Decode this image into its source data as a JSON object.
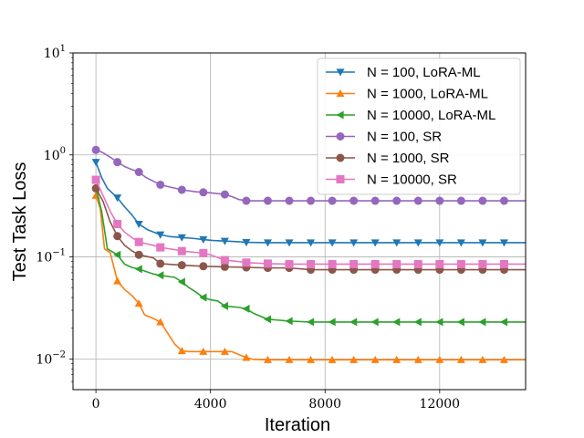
{
  "chart_data": {
    "type": "line",
    "title": "",
    "xlabel": "Iteration",
    "ylabel": "Test Task Loss",
    "yscale": "log",
    "xlim": [
      -800,
      15000
    ],
    "ylim": [
      0.005,
      10
    ],
    "xticks": [
      0,
      4000,
      8000,
      12000
    ],
    "xtick_labels": [
      "0",
      "4000",
      "8000",
      "12000"
    ],
    "yticks": [
      0.01,
      0.1,
      1,
      10
    ],
    "ytick_labels": [
      {
        "base": "10",
        "exp": "−2"
      },
      {
        "base": "10",
        "exp": "−1"
      },
      {
        "base": "10",
        "exp": "0"
      },
      {
        "base": "10",
        "exp": "1"
      }
    ],
    "grid": true,
    "legend_position": "top-right",
    "series": [
      {
        "name": "N = 100, LoRA-ML",
        "color": "#1f77b4",
        "marker": "triangle-down",
        "x": [
          0,
          200,
          400,
          750,
          1000,
          1250,
          1500,
          1800,
          2250,
          2600,
          3000,
          3400,
          3750,
          4100,
          4500,
          5000,
          5250,
          6000,
          6750,
          7500,
          8250,
          9000,
          9750,
          10500,
          11250,
          12000,
          12750,
          13500,
          14250,
          15000
        ],
        "y": [
          0.85,
          0.6,
          0.47,
          0.38,
          0.31,
          0.26,
          0.21,
          0.185,
          0.165,
          0.158,
          0.155,
          0.152,
          0.148,
          0.145,
          0.143,
          0.141,
          0.139,
          0.138,
          0.138,
          0.138,
          0.138,
          0.138,
          0.138,
          0.138,
          0.138,
          0.138,
          0.138,
          0.138,
          0.138,
          0.138
        ]
      },
      {
        "name": "N = 1000, LoRA-ML",
        "color": "#ff7f0e",
        "marker": "triangle-up",
        "x": [
          0,
          150,
          300,
          500,
          750,
          1000,
          1250,
          1500,
          1700,
          2000,
          2250,
          2500,
          2750,
          3000,
          3250,
          3750,
          4000,
          4500,
          4750,
          5000,
          5250,
          5500,
          6000,
          6750,
          7500,
          8250,
          9000,
          9750,
          10500,
          11250,
          12000,
          12750,
          13500,
          14250,
          15000
        ],
        "y": [
          0.4,
          0.3,
          0.12,
          0.11,
          0.058,
          0.048,
          0.042,
          0.035,
          0.027,
          0.025,
          0.023,
          0.018,
          0.014,
          0.012,
          0.0118,
          0.0118,
          0.0118,
          0.0118,
          0.0118,
          0.011,
          0.0103,
          0.0099,
          0.0098,
          0.0098,
          0.0098,
          0.0098,
          0.0098,
          0.0098,
          0.0098,
          0.0098,
          0.0098,
          0.0098,
          0.0098,
          0.0098,
          0.0098
        ]
      },
      {
        "name": "N = 10000, LoRA-ML",
        "color": "#2ca02c",
        "marker": "triangle-left",
        "x": [
          0,
          200,
          400,
          750,
          1000,
          1250,
          1500,
          2000,
          2250,
          2750,
          3000,
          3250,
          3500,
          3750,
          4000,
          4250,
          4500,
          5000,
          5250,
          5500,
          6000,
          6750,
          7500,
          8250,
          9000,
          9750,
          10500,
          11250,
          12000,
          12750,
          13500,
          14250,
          15000
        ],
        "y": [
          0.47,
          0.28,
          0.12,
          0.105,
          0.085,
          0.079,
          0.076,
          0.068,
          0.066,
          0.063,
          0.057,
          0.05,
          0.045,
          0.04,
          0.038,
          0.037,
          0.033,
          0.032,
          0.031,
          0.028,
          0.0245,
          0.0235,
          0.023,
          0.023,
          0.023,
          0.023,
          0.023,
          0.023,
          0.023,
          0.023,
          0.023,
          0.023,
          0.023
        ]
      },
      {
        "name": "N = 100, SR",
        "color": "#9467bd",
        "marker": "circle",
        "x": [
          0,
          250,
          500,
          750,
          1000,
          1250,
          1500,
          1750,
          2250,
          2500,
          3000,
          3500,
          4000,
          4500,
          4750,
          5000,
          5250,
          6000,
          6750,
          7500,
          8250,
          9000,
          9750,
          10500,
          11250,
          12000,
          12750,
          13500,
          14250,
          15000
        ],
        "y": [
          1.12,
          1.05,
          0.95,
          0.85,
          0.77,
          0.72,
          0.68,
          0.6,
          0.51,
          0.49,
          0.455,
          0.435,
          0.425,
          0.41,
          0.39,
          0.365,
          0.355,
          0.355,
          0.355,
          0.355,
          0.355,
          0.355,
          0.355,
          0.355,
          0.355,
          0.355,
          0.355,
          0.355,
          0.355,
          0.355
        ]
      },
      {
        "name": "N = 1000, SR",
        "color": "#8c564b",
        "marker": "circle",
        "x": [
          0,
          250,
          500,
          750,
          1000,
          1250,
          1500,
          2000,
          2250,
          2750,
          3000,
          3750,
          4500,
          5250,
          6000,
          6750,
          7500,
          8250,
          9000,
          9750,
          10500,
          11250,
          12000,
          12750,
          13500,
          14250,
          15000
        ],
        "y": [
          0.47,
          0.35,
          0.22,
          0.16,
          0.13,
          0.115,
          0.105,
          0.098,
          0.086,
          0.084,
          0.083,
          0.081,
          0.08,
          0.079,
          0.078,
          0.078,
          0.075,
          0.075,
          0.075,
          0.075,
          0.075,
          0.075,
          0.075,
          0.075,
          0.075,
          0.075,
          0.075
        ]
      },
      {
        "name": "N = 10000, SR",
        "color": "#e377c2",
        "marker": "square",
        "x": [
          0,
          250,
          500,
          750,
          1000,
          1250,
          1500,
          2000,
          2250,
          2750,
          3000,
          3750,
          4000,
          4500,
          5000,
          5250,
          6000,
          6750,
          7500,
          8250,
          9000,
          9750,
          10500,
          11250,
          12000,
          12750,
          13500,
          14250,
          15000
        ],
        "y": [
          0.57,
          0.4,
          0.28,
          0.21,
          0.175,
          0.155,
          0.14,
          0.13,
          0.124,
          0.118,
          0.114,
          0.109,
          0.105,
          0.093,
          0.09,
          0.088,
          0.086,
          0.085,
          0.085,
          0.085,
          0.085,
          0.085,
          0.085,
          0.085,
          0.085,
          0.085,
          0.085,
          0.085,
          0.085
        ]
      }
    ],
    "marker_x": [
      0,
      750,
      1500,
      2250,
      3000,
      3750,
      4500,
      5250,
      6000,
      6750,
      7500,
      8250,
      9000,
      9750,
      10500,
      11250,
      12000,
      12750,
      13500,
      14250
    ]
  }
}
